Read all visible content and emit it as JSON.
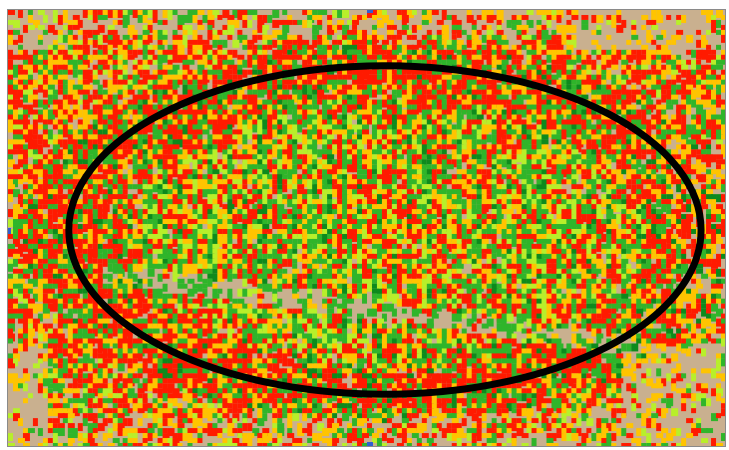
{
  "image": {
    "description_free": true,
    "palette": {
      "soil": "#c9b08f",
      "low": "#ff1a00",
      "moderate": "#ffc400",
      "medium": "#2fb52a",
      "high": "#b8ef2a",
      "dark_vegetation": "#0d8a1d",
      "outline": "#000000",
      "selection_handle": "#2f5fd0"
    }
  },
  "overlay": {
    "shape": "ellipse",
    "stroke_color": "#000000"
  }
}
